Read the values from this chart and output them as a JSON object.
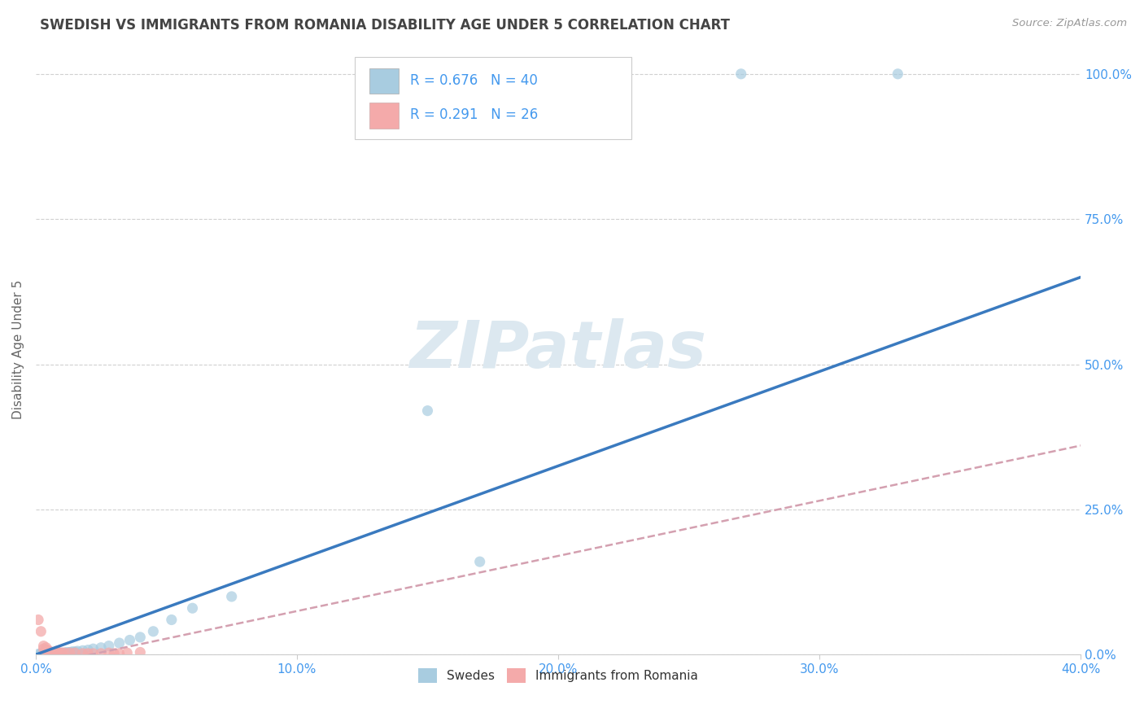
{
  "title": "SWEDISH VS IMMIGRANTS FROM ROMANIA DISABILITY AGE UNDER 5 CORRELATION CHART",
  "source": "Source: ZipAtlas.com",
  "ylabel": "Disability Age Under 5",
  "xlim": [
    0.0,
    0.4
  ],
  "ylim": [
    0.0,
    1.05
  ],
  "xticks": [
    0.0,
    0.1,
    0.2,
    0.3,
    0.4
  ],
  "xtick_labels": [
    "0.0%",
    "10.0%",
    "20.0%",
    "30.0%",
    "40.0%"
  ],
  "yticks": [
    0.0,
    0.25,
    0.5,
    0.75,
    1.0
  ],
  "ytick_labels": [
    "0.0%",
    "25.0%",
    "50.0%",
    "75.0%",
    "100.0%"
  ],
  "grid_color": "#d0d0d0",
  "background_color": "#ffffff",
  "legend_R1": "0.676",
  "legend_N1": "40",
  "legend_R2": "0.291",
  "legend_N2": "26",
  "blue_color": "#a8cce0",
  "pink_color": "#f4aaaa",
  "blue_line_color": "#3a7abf",
  "pink_line_color": "#d4a0b0",
  "title_color": "#444444",
  "axis_label_color": "#666666",
  "tick_color": "#4499ee",
  "source_color": "#999999",
  "watermark_color": "#dce8f0",
  "swedish_x": [
    0.001,
    0.002,
    0.002,
    0.003,
    0.003,
    0.004,
    0.004,
    0.005,
    0.005,
    0.006,
    0.006,
    0.007,
    0.007,
    0.008,
    0.008,
    0.009,
    0.01,
    0.01,
    0.011,
    0.012,
    0.013,
    0.014,
    0.015,
    0.016,
    0.018,
    0.02,
    0.022,
    0.025,
    0.028,
    0.032,
    0.036,
    0.04,
    0.045,
    0.052,
    0.06,
    0.075,
    0.15,
    0.17,
    0.27,
    0.33
  ],
  "swedish_y": [
    0.001,
    0.001,
    0.002,
    0.001,
    0.002,
    0.001,
    0.002,
    0.001,
    0.002,
    0.001,
    0.002,
    0.001,
    0.002,
    0.002,
    0.003,
    0.002,
    0.002,
    0.003,
    0.003,
    0.004,
    0.004,
    0.005,
    0.005,
    0.006,
    0.007,
    0.008,
    0.01,
    0.012,
    0.015,
    0.02,
    0.025,
    0.03,
    0.04,
    0.06,
    0.08,
    0.1,
    0.42,
    0.16,
    1.0,
    1.0
  ],
  "swedish_line_x": [
    0.0,
    0.4
  ],
  "swedish_line_y": [
    0.0,
    0.65
  ],
  "romanian_line_x": [
    0.0,
    0.4
  ],
  "romanian_line_y": [
    -0.02,
    0.36
  ],
  "romanian_x": [
    0.001,
    0.002,
    0.003,
    0.003,
    0.004,
    0.004,
    0.005,
    0.005,
    0.006,
    0.007,
    0.008,
    0.008,
    0.009,
    0.01,
    0.011,
    0.013,
    0.015,
    0.018,
    0.02,
    0.022,
    0.025,
    0.028,
    0.03,
    0.032,
    0.035,
    0.04
  ],
  "romanian_y": [
    0.06,
    0.04,
    0.01,
    0.015,
    0.008,
    0.012,
    0.004,
    0.007,
    0.004,
    0.003,
    0.004,
    0.006,
    0.003,
    0.003,
    0.003,
    0.003,
    0.003,
    0.002,
    0.002,
    0.002,
    0.002,
    0.003,
    0.002,
    0.002,
    0.003,
    0.004
  ]
}
